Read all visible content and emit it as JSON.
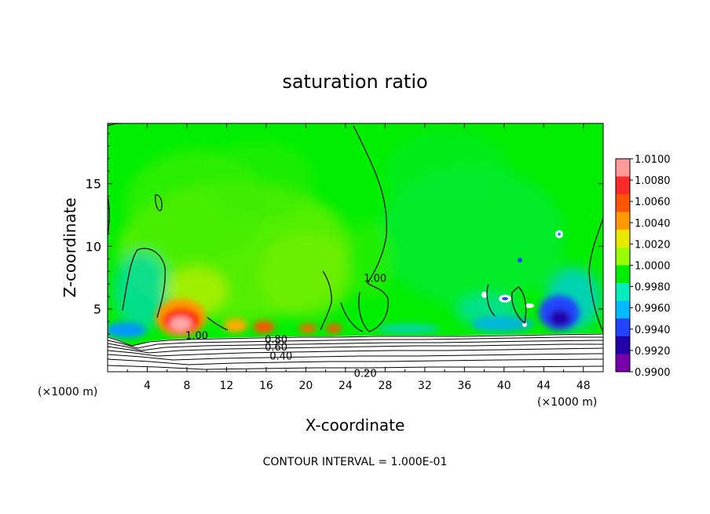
{
  "chart_data": {
    "type": "heatmap",
    "title": "saturation ratio",
    "xlabel": "X-coordinate",
    "ylabel": "Z-coordinate",
    "x_unit": "(×1000 m)",
    "y_unit": "(×1000 m)",
    "xlim": [
      0,
      50
    ],
    "ylim": [
      0,
      19.8
    ],
    "x_ticks": [
      "4",
      "8",
      "12",
      "16",
      "20",
      "24",
      "28",
      "32",
      "36",
      "40",
      "44",
      "48"
    ],
    "y_ticks": [
      "5",
      "10",
      "15"
    ],
    "footer": "CONTOUR INTERVAL = 1.000E-01",
    "colorbar": {
      "labels": [
        "1.0100",
        "1.0080",
        "1.0060",
        "1.0040",
        "1.0020",
        "1.0000",
        "0.9980",
        "0.9960",
        "0.9940",
        "0.9920",
        "0.9900"
      ],
      "colors": [
        "#ff9a9a",
        "#ff2a2a",
        "#ff5500",
        "#ff9900",
        "#e8e800",
        "#99ff00",
        "#00ee00",
        "#00eebb",
        "#00bbff",
        "#2244ff",
        "#2200aa",
        "#7700aa"
      ]
    },
    "contour_labels": [
      {
        "text": "1.00",
        "x": 9.0,
        "z": 2.9
      },
      {
        "text": "1.00",
        "x": 27.0,
        "z": 7.5
      },
      {
        "text": "0.80",
        "x": 17.0,
        "z": 2.6
      },
      {
        "text": "0.60",
        "x": 17.0,
        "z": 2.0
      },
      {
        "text": "0.40",
        "x": 17.5,
        "z": 1.3
      },
      {
        "text": "0.20",
        "x": 26.0,
        "z": -0.1
      }
    ]
  }
}
